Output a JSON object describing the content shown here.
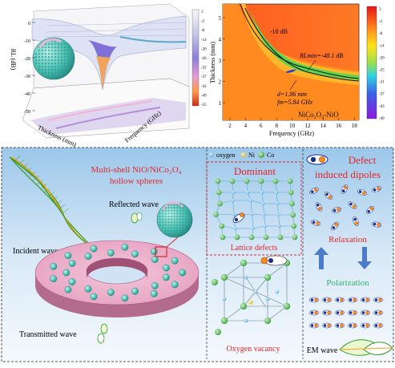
{
  "panel_3d": {
    "zlabel": "RL (dB)",
    "xlabel": "Thickness (mm)",
    "ylabel": "Frequency (GHz)",
    "z_ticks": [
      "0",
      "-10",
      "-20",
      "-30",
      "-40",
      "-50"
    ],
    "cb_ticks": [
      "3",
      "-2",
      "-8",
      "-14",
      "-20",
      "-26",
      "-32",
      "-37",
      "-43",
      "-49",
      "-55"
    ]
  },
  "panel_contour": {
    "title": "NiCo₂O₄-NiO",
    "ylabel": "Thickness (mm)",
    "xlabel": "Frequency (GHz)",
    "x_ticks": [
      "2",
      "4",
      "6",
      "8",
      "10",
      "12",
      "14",
      "16",
      "18"
    ],
    "y_ticks": [
      "1",
      "2",
      "3",
      "4",
      "5"
    ],
    "label_10db": "-10 dB",
    "rlmin_text": "RLmin=-48.1 dB",
    "d_text": "d=1.86 mm",
    "f_text": "fm=5.84 GHz",
    "cb_ticks": [
      "3",
      "-2",
      "-8",
      "-14",
      "-20",
      "-25",
      "-31",
      "-37",
      "-43",
      "-49"
    ]
  },
  "bottom": {
    "title_shell": "Multi-shell NiO/NiCo₂O₄",
    "title_shell2": "hollow spheres",
    "reflected": "Reflected wave",
    "incident": "Incident wave",
    "transmitted": "Transmitted wave",
    "legend_oxygen": "oxygen",
    "legend_ni": "Ni",
    "legend_co": "Co",
    "dominant": "Dominant",
    "lattice": "Lattice defects",
    "oxygen_vacancy": "Oxygen vacancy",
    "defect1": "Defect",
    "defect2": "induced dipoles",
    "relaxation": "Relaxation",
    "polarization": "Polarization",
    "em_wave": "EM wave"
  }
}
